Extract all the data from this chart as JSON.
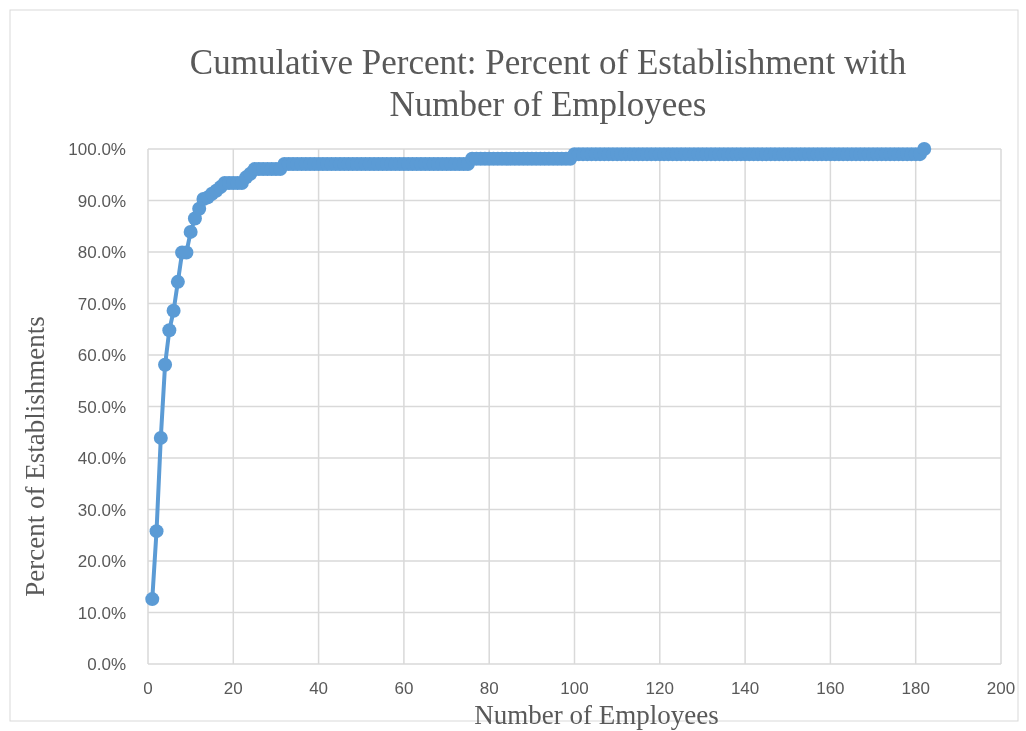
{
  "chart_data": {
    "type": "line",
    "title": "Cumulative Percent: Percent of Establishment with Number of Employees",
    "xlabel": "Number of Employees",
    "ylabel": "Percent of Establishments",
    "xlim": [
      0,
      200
    ],
    "xticks": [
      0,
      20,
      40,
      60,
      80,
      100,
      120,
      140,
      160,
      180,
      200
    ],
    "ylim": [
      0,
      100
    ],
    "yticks": [
      {
        "value": 0,
        "label": "0.0%"
      },
      {
        "value": 10,
        "label": "10.0%"
      },
      {
        "value": 20,
        "label": "20.0%"
      },
      {
        "value": 30,
        "label": "30.0%"
      },
      {
        "value": 40,
        "label": "40.0%"
      },
      {
        "value": 50,
        "label": "50.0%"
      },
      {
        "value": 60,
        "label": "60.0%"
      },
      {
        "value": 70,
        "label": "70.0%"
      },
      {
        "value": 80,
        "label": "80.0%"
      },
      {
        "value": 90,
        "label": "90.0%"
      },
      {
        "value": 100,
        "label": "100.0%"
      }
    ],
    "grid": true,
    "marker": "circle",
    "line_style": "solid",
    "x": [
      1,
      2,
      3,
      4,
      5,
      6,
      7,
      8,
      9,
      10,
      11,
      12,
      13,
      14,
      15,
      16,
      17,
      18,
      19,
      20,
      21,
      22,
      23,
      24,
      25,
      26,
      27,
      28,
      29,
      30,
      31,
      32,
      33,
      34,
      35,
      36,
      37,
      38,
      39,
      40,
      41,
      42,
      43,
      44,
      45,
      46,
      47,
      48,
      49,
      50,
      51,
      52,
      53,
      54,
      55,
      56,
      57,
      58,
      59,
      60,
      61,
      62,
      63,
      64,
      65,
      66,
      67,
      68,
      69,
      70,
      71,
      72,
      73,
      74,
      75,
      76,
      77,
      78,
      79,
      80,
      81,
      82,
      83,
      84,
      85,
      86,
      87,
      88,
      89,
      90,
      91,
      92,
      93,
      94,
      95,
      96,
      97,
      98,
      99,
      100,
      101,
      102,
      103,
      104,
      105,
      106,
      107,
      108,
      109,
      110,
      111,
      112,
      113,
      114,
      115,
      116,
      117,
      118,
      119,
      120,
      121,
      122,
      123,
      124,
      125,
      126,
      127,
      128,
      129,
      130,
      131,
      132,
      133,
      134,
      135,
      136,
      137,
      138,
      139,
      140,
      141,
      142,
      143,
      144,
      145,
      146,
      147,
      148,
      149,
      150,
      151,
      152,
      153,
      154,
      155,
      156,
      157,
      158,
      159,
      160,
      161,
      162,
      163,
      164,
      165,
      166,
      167,
      168,
      169,
      170,
      171,
      172,
      173,
      174,
      175,
      176,
      177,
      178,
      179,
      180,
      181,
      182
    ],
    "series": [
      {
        "color": "#5b9bd5",
        "values": [
          12.6,
          25.8,
          43.9,
          58.1,
          64.8,
          68.6,
          74.2,
          79.9,
          79.9,
          83.9,
          86.5,
          88.4,
          90.3,
          90.6,
          91.3,
          91.9,
          92.6,
          93.4,
          93.4,
          93.4,
          93.4,
          93.4,
          94.5,
          95.2,
          96.1,
          96.1,
          96.1,
          96.1,
          96.1,
          96.1,
          96.1,
          97.1,
          97.1,
          97.1,
          97.1,
          97.1,
          97.1,
          97.1,
          97.1,
          97.1,
          97.1,
          97.1,
          97.1,
          97.1,
          97.1,
          97.1,
          97.1,
          97.1,
          97.1,
          97.1,
          97.1,
          97.1,
          97.1,
          97.1,
          97.1,
          97.1,
          97.1,
          97.1,
          97.1,
          97.1,
          97.1,
          97.1,
          97.1,
          97.1,
          97.1,
          97.1,
          97.1,
          97.1,
          97.1,
          97.1,
          97.1,
          97.1,
          97.1,
          97.1,
          97.1,
          98.1,
          98.1,
          98.1,
          98.1,
          98.1,
          98.1,
          98.1,
          98.1,
          98.1,
          98.1,
          98.1,
          98.1,
          98.1,
          98.1,
          98.1,
          98.1,
          98.1,
          98.1,
          98.1,
          98.1,
          98.1,
          98.1,
          98.1,
          98.1,
          99.0,
          99.0,
          99.0,
          99.0,
          99.0,
          99.0,
          99.0,
          99.0,
          99.0,
          99.0,
          99.0,
          99.0,
          99.0,
          99.0,
          99.0,
          99.0,
          99.0,
          99.0,
          99.0,
          99.0,
          99.0,
          99.0,
          99.0,
          99.0,
          99.0,
          99.0,
          99.0,
          99.0,
          99.0,
          99.0,
          99.0,
          99.0,
          99.0,
          99.0,
          99.0,
          99.0,
          99.0,
          99.0,
          99.0,
          99.0,
          99.0,
          99.0,
          99.0,
          99.0,
          99.0,
          99.0,
          99.0,
          99.0,
          99.0,
          99.0,
          99.0,
          99.0,
          99.0,
          99.0,
          99.0,
          99.0,
          99.0,
          99.0,
          99.0,
          99.0,
          99.0,
          99.0,
          99.0,
          99.0,
          99.0,
          99.0,
          99.0,
          99.0,
          99.0,
          99.0,
          99.0,
          99.0,
          99.0,
          99.0,
          99.0,
          99.0,
          99.0,
          99.0,
          99.0,
          99.0,
          99.0,
          99.0,
          100
        ]
      }
    ]
  }
}
